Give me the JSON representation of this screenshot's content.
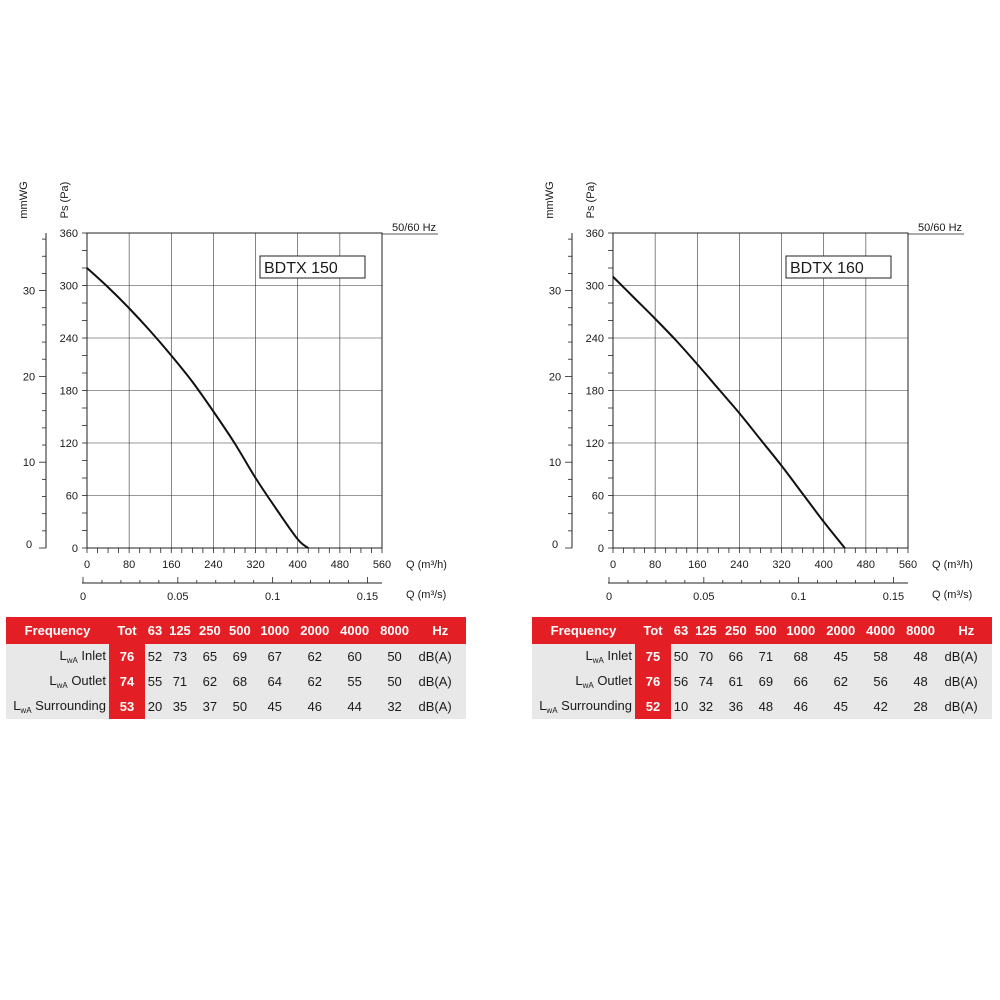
{
  "charts": [
    {
      "model": "BDTX 150",
      "freq_label": "50/60 Hz",
      "y_left_title": "mmWG",
      "y_right_title": "Ps (Pa)",
      "mmwg_ticks": [
        "30",
        "20",
        "10",
        "0"
      ],
      "mmwg_values": [
        30,
        20,
        10,
        0
      ],
      "pa_ticks": [
        "360",
        "300",
        "240",
        "180",
        "120",
        "60",
        "0"
      ],
      "q_m3h_title": "Q (m³/h)",
      "q_m3h_ticks": [
        "0",
        "80",
        "160",
        "240",
        "320",
        "400",
        "480",
        "560"
      ],
      "q_m3s_title": "Q (m³/s)",
      "q_m3s_ticks": [
        "0",
        "0.05",
        "0.1",
        "0.15"
      ],
      "q_m3s_values": [
        0,
        0.05,
        0.1,
        0.15
      ],
      "table": {
        "header": [
          "Frequency",
          "Tot",
          "63",
          "125",
          "250",
          "500",
          "1000",
          "2000",
          "4000",
          "8000",
          "Hz"
        ],
        "rows": [
          {
            "label_main": "L",
            "label_sub": "wA",
            "label_rest": " Inlet",
            "tot": "76",
            "values": [
              "52",
              "73",
              "65",
              "69",
              "67",
              "62",
              "60",
              "50"
            ],
            "unit": "dB(A)"
          },
          {
            "label_main": "L",
            "label_sub": "wA",
            "label_rest": " Outlet",
            "tot": "74",
            "values": [
              "55",
              "71",
              "62",
              "68",
              "64",
              "62",
              "55",
              "50"
            ],
            "unit": "dB(A)"
          },
          {
            "label_main": "L",
            "label_sub": "wA",
            "label_rest": " Surrounding",
            "tot": "53",
            "values": [
              "20",
              "35",
              "37",
              "50",
              "45",
              "46",
              "44",
              "32"
            ],
            "unit": "dB(A)"
          }
        ]
      }
    },
    {
      "model": "BDTX 160",
      "freq_label": "50/60 Hz",
      "y_left_title": "mmWG",
      "y_right_title": "Ps (Pa)",
      "mmwg_ticks": [
        "30",
        "20",
        "10",
        "0"
      ],
      "mmwg_values": [
        30,
        20,
        10,
        0
      ],
      "pa_ticks": [
        "360",
        "300",
        "240",
        "180",
        "120",
        "60",
        "0"
      ],
      "q_m3h_title": "Q (m³/h)",
      "q_m3h_ticks": [
        "0",
        "80",
        "160",
        "240",
        "320",
        "400",
        "480",
        "560"
      ],
      "q_m3s_title": "Q (m³/s)",
      "q_m3s_ticks": [
        "0",
        "0.05",
        "0.1",
        "0.15"
      ],
      "q_m3s_values": [
        0,
        0.05,
        0.1,
        0.15
      ],
      "table": {
        "header": [
          "Frequency",
          "Tot",
          "63",
          "125",
          "250",
          "500",
          "1000",
          "2000",
          "4000",
          "8000",
          "Hz"
        ],
        "rows": [
          {
            "label_main": "L",
            "label_sub": "wA",
            "label_rest": " Inlet",
            "tot": "75",
            "values": [
              "50",
              "70",
              "66",
              "71",
              "68",
              "45",
              "58",
              "48"
            ],
            "unit": "dB(A)"
          },
          {
            "label_main": "L",
            "label_sub": "wA",
            "label_rest": " Outlet",
            "tot": "76",
            "values": [
              "56",
              "74",
              "61",
              "69",
              "66",
              "62",
              "56",
              "48"
            ],
            "unit": "dB(A)"
          },
          {
            "label_main": "L",
            "label_sub": "wA",
            "label_rest": " Surrounding",
            "tot": "52",
            "values": [
              "10",
              "32",
              "36",
              "48",
              "46",
              "45",
              "42",
              "28"
            ],
            "unit": "dB(A)"
          }
        ]
      }
    }
  ],
  "chart_data": [
    {
      "type": "line",
      "title": "BDTX 150",
      "xlabel": "Q (m³/h)",
      "ylabel": "Ps (Pa)",
      "xlim": [
        0,
        560
      ],
      "ylim": [
        0,
        360
      ],
      "grid": true,
      "series": [
        {
          "x": [
            0,
            40,
            80,
            120,
            160,
            200,
            240,
            280,
            320,
            360,
            400,
            420
          ],
          "y": [
            320,
            298,
            274,
            248,
            220,
            190,
            156,
            120,
            80,
            44,
            10,
            0
          ]
        }
      ]
    },
    {
      "type": "line",
      "title": "BDTX 160",
      "xlabel": "Q (m³/h)",
      "ylabel": "Ps (Pa)",
      "xlim": [
        0,
        560
      ],
      "ylim": [
        0,
        360
      ],
      "grid": true,
      "series": [
        {
          "x": [
            0,
            40,
            80,
            120,
            160,
            200,
            240,
            280,
            320,
            360,
            400,
            440
          ],
          "y": [
            310,
            286,
            262,
            237,
            210,
            182,
            154,
            124,
            94,
            62,
            30,
            0
          ]
        }
      ]
    }
  ]
}
